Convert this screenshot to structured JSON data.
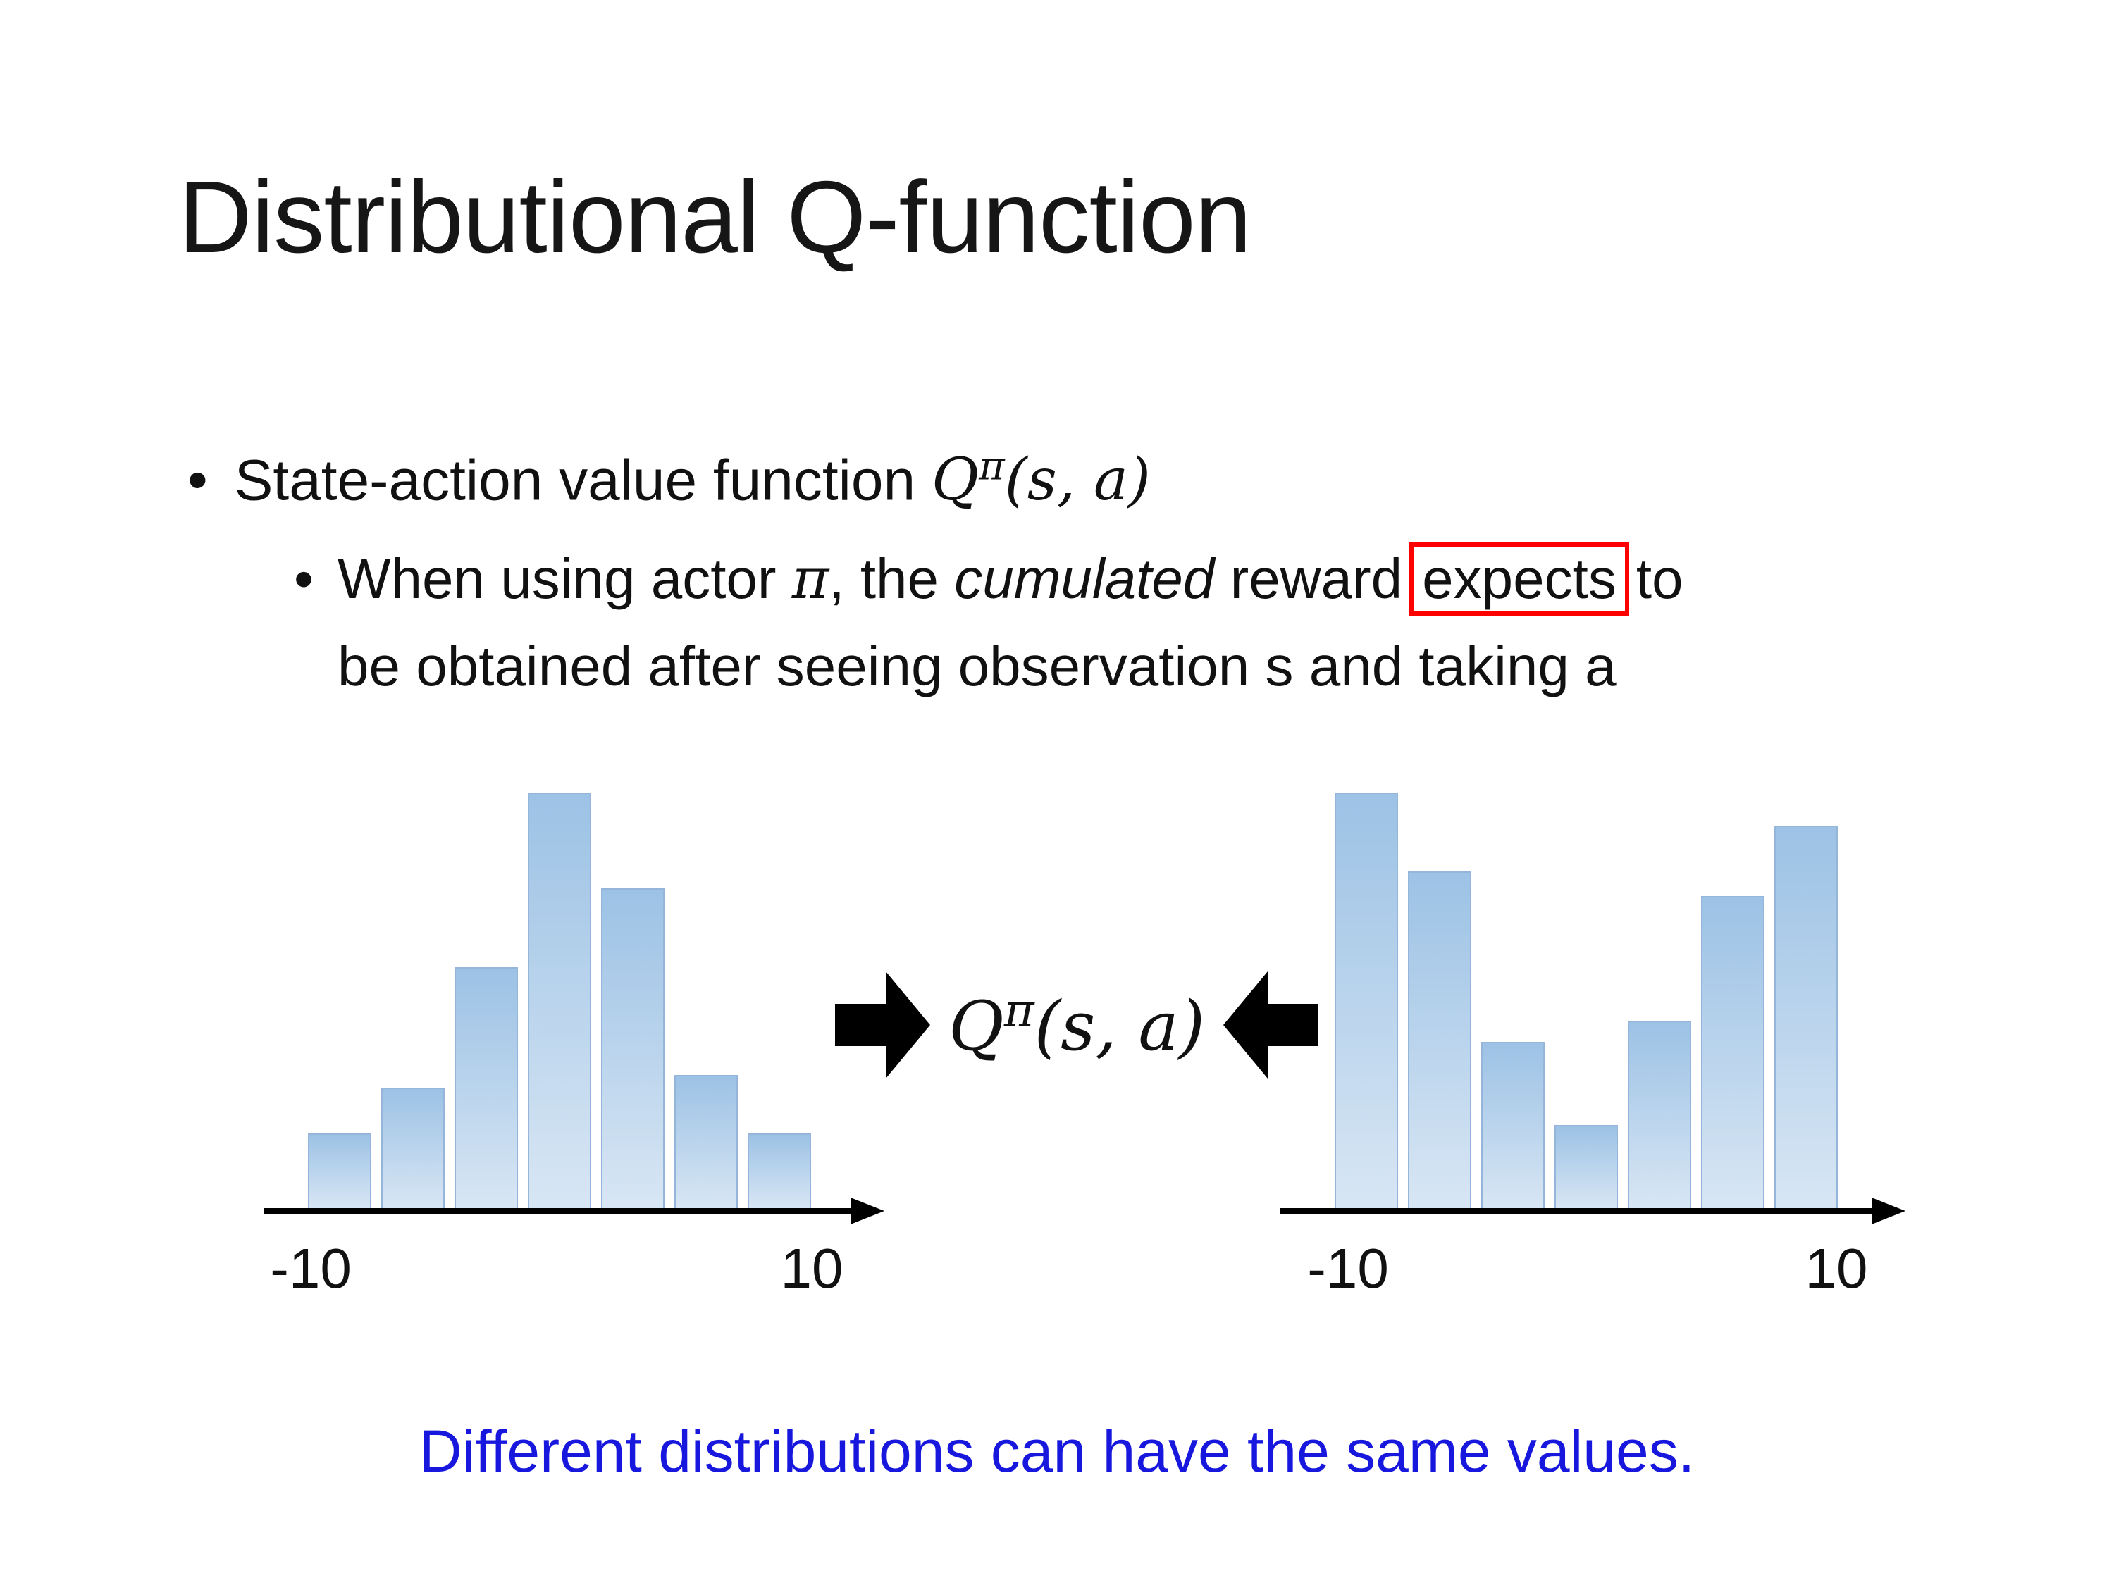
{
  "slide": {
    "title": "Distributional Q-function",
    "bullet_marker": "•",
    "bullet1": {
      "text": "State-action value function",
      "math": {
        "Q": "Q",
        "sup": "π",
        "args": "(s, a)"
      }
    },
    "bullet2": {
      "part1": "When using actor ",
      "pi": "π",
      "part2": ", the ",
      "italic": "cumulated",
      "part3": " reward",
      "boxed": "expects",
      "part4": "to",
      "part5": "be obtained after seeing observation s and taking a"
    },
    "formula": {
      "Q": "Q",
      "sup": "π",
      "args": "(s, a)"
    },
    "caption": "Different distributions can have the same values.",
    "colors": {
      "caption_blue": "#1717dd",
      "highlight_box_red": "#ff0000",
      "bar_fill_top": "#9cc2e5",
      "bar_fill_bottom": "#d8e6f4",
      "bar_border": "#95b6da",
      "axis_black": "#000000"
    }
  },
  "chart_data": [
    {
      "type": "bar",
      "description_role": "left histogram - unimodal return distribution",
      "x_min_label": "-10",
      "x_max_label": "10",
      "x_range": [
        -10,
        10
      ],
      "ylim": [
        0,
        1
      ],
      "grid": false,
      "legend": false,
      "values": [
        0.18,
        0.29,
        0.58,
        1.0,
        0.77,
        0.32,
        0.18
      ]
    },
    {
      "type": "bar",
      "description_role": "right histogram - bimodal return distribution",
      "x_min_label": "-10",
      "x_max_label": "10",
      "x_range": [
        -10,
        10
      ],
      "ylim": [
        0,
        1
      ],
      "grid": false,
      "legend": false,
      "values": [
        1.0,
        0.81,
        0.4,
        0.2,
        0.45,
        0.75,
        0.92
      ]
    }
  ]
}
